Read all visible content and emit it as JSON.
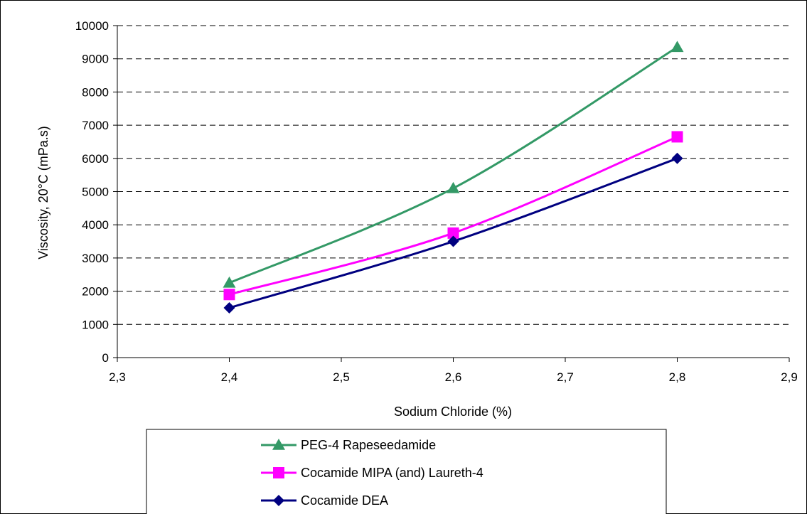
{
  "chart_data": {
    "type": "line",
    "title": "",
    "xlabel": "Sodium Chloride (%)",
    "ylabel": "Viscosity, 20°C (mPa.s)",
    "xlim": [
      2.3,
      2.9
    ],
    "ylim": [
      0,
      10000
    ],
    "x_ticks": [
      "2,3",
      "2,4",
      "2,5",
      "2,6",
      "2,7",
      "2,8",
      "2,9"
    ],
    "y_ticks": [
      "0",
      "1000",
      "2000",
      "3000",
      "4000",
      "5000",
      "6000",
      "7000",
      "8000",
      "9000",
      "10000"
    ],
    "grid": "horizontal dashed",
    "legend_position": "bottom",
    "x": [
      2.4,
      2.6,
      2.8
    ],
    "series": [
      {
        "name": "PEG-4 Rapeseedamide",
        "values": [
          2250,
          5100,
          9350
        ],
        "color": "#339966",
        "marker": "triangle"
      },
      {
        "name": "Cocamide MIPA (and) Laureth-4",
        "values": [
          1900,
          3750,
          6650
        ],
        "color": "#ff00ff",
        "marker": "square"
      },
      {
        "name": "Cocamide DEA",
        "values": [
          1500,
          3500,
          6000
        ],
        "color": "#000080",
        "marker": "diamond"
      }
    ]
  }
}
